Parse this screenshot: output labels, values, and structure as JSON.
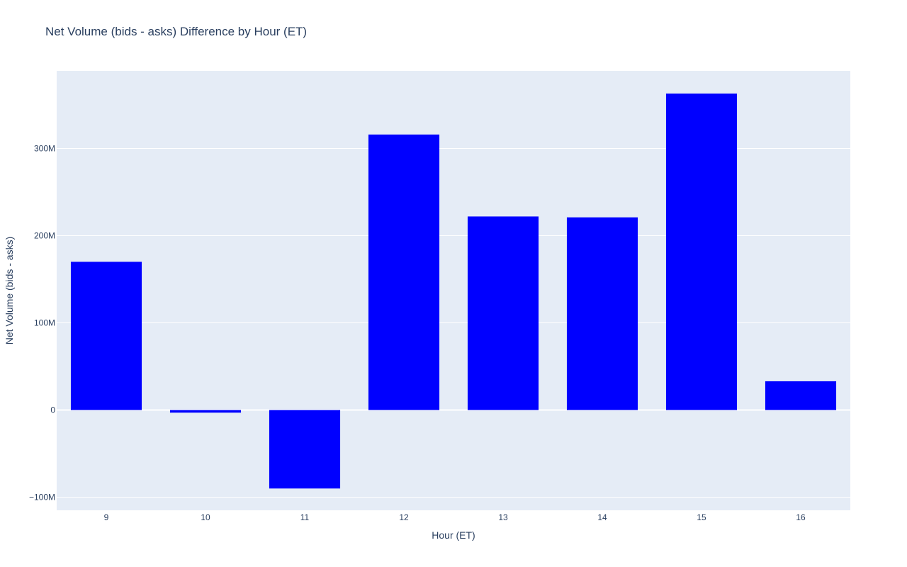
{
  "chart_data": {
    "type": "bar",
    "title": "Net Volume (bids - asks) Difference by Hour (ET)",
    "xlabel": "Hour (ET)",
    "ylabel": "Net Volume (bids - asks)",
    "categories": [
      "9",
      "10",
      "11",
      "12",
      "13",
      "14",
      "15",
      "16"
    ],
    "values": [
      170000000,
      -3000000,
      -90000000,
      316000000,
      222000000,
      221000000,
      363000000,
      33000000
    ],
    "ylim": [
      -115000000,
      389000000
    ],
    "yticks": [
      -100000000,
      0,
      100000000,
      200000000,
      300000000
    ],
    "ytick_labels": [
      "−100M",
      "0",
      "100M",
      "200M",
      "300M"
    ],
    "grid": true,
    "legend": "none",
    "colors": {
      "bar": "#0000ff",
      "plot_background": "#e5ecf6",
      "grid": "#ffffff",
      "text": "#2a3f5f"
    }
  }
}
